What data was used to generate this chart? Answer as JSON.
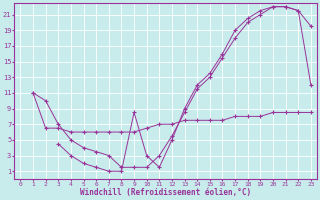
{
  "xlabel": "Windchill (Refroidissement éolien,°C)",
  "bg_color": "#c8ecec",
  "line_color": "#993399",
  "grid_color": "#ffffff",
  "xlim": [
    -0.5,
    23.5
  ],
  "ylim": [
    0,
    22.5
  ],
  "xticks": [
    0,
    1,
    2,
    3,
    4,
    5,
    6,
    7,
    8,
    9,
    10,
    11,
    12,
    13,
    14,
    15,
    16,
    17,
    18,
    19,
    20,
    21,
    22,
    23
  ],
  "yticks": [
    1,
    3,
    5,
    7,
    9,
    11,
    13,
    15,
    17,
    19,
    21
  ],
  "curve1_x": [
    1,
    2,
    3,
    4,
    5,
    6,
    7,
    8,
    9,
    10,
    11,
    12,
    13,
    14,
    15,
    16,
    17,
    18,
    19,
    20,
    21,
    22,
    23
  ],
  "curve1_y": [
    11,
    10,
    7,
    5,
    4,
    3.5,
    3,
    1.5,
    1.5,
    1.5,
    3,
    5.5,
    8.5,
    11.5,
    13,
    15.5,
    18,
    20,
    21,
    22,
    22,
    21.5,
    19.5
  ],
  "curve2_x": [
    3,
    4,
    5,
    6,
    7,
    8,
    9,
    10,
    11,
    12,
    13,
    14,
    15,
    16,
    17,
    18,
    19,
    20,
    21,
    22,
    23
  ],
  "curve2_y": [
    4.5,
    3,
    2,
    1.5,
    1,
    1,
    8.5,
    3,
    1.5,
    5,
    9,
    12,
    13.5,
    16,
    19,
    20.5,
    21.5,
    22,
    22,
    21.5,
    12
  ],
  "curve3_x": [
    1,
    2,
    3,
    4,
    5,
    6,
    7,
    8,
    9,
    10,
    11,
    12,
    13,
    14,
    15,
    16,
    17,
    18,
    19,
    20,
    21,
    22,
    23
  ],
  "curve3_y": [
    11,
    6.5,
    6.5,
    6,
    6,
    6,
    6,
    6,
    6,
    6.5,
    7,
    7,
    7.5,
    7.5,
    7.5,
    7.5,
    8,
    8,
    8,
    8.5,
    8.5,
    8.5,
    8.5
  ]
}
